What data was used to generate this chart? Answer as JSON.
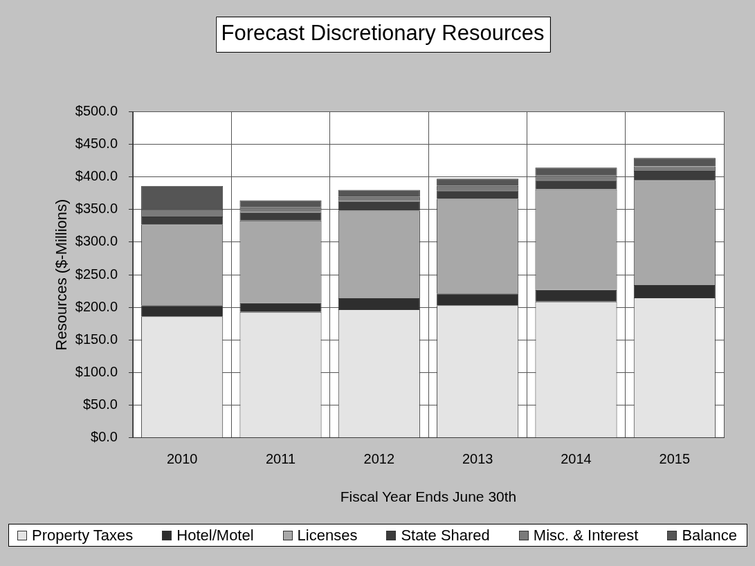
{
  "chart_data": {
    "type": "bar",
    "title": "Forecast Discretionary Resources",
    "xlabel": "Fiscal Year Ends June 30th",
    "ylabel": "Resources ($-Millions)",
    "categories": [
      "2010",
      "2011",
      "2012",
      "2013",
      "2014",
      "2015"
    ],
    "stacked": true,
    "series": [
      {
        "name": "Property Taxes",
        "color": "#e4e4e4",
        "values": [
          186,
          193,
          197,
          203,
          209,
          215
        ]
      },
      {
        "name": "Hotel/Motel",
        "color": "#2e2e2e",
        "values": [
          17,
          14,
          17,
          18,
          18,
          19
        ]
      },
      {
        "name": "Licenses",
        "color": "#a8a8a8",
        "values": [
          124,
          126,
          134,
          145,
          154,
          161
        ]
      },
      {
        "name": "State Shared",
        "color": "#3c3c3c",
        "values": [
          12,
          13,
          15,
          13,
          14,
          14
        ]
      },
      {
        "name": "Misc. & Interest",
        "color": "#7a7a7a",
        "values": [
          11,
          7,
          6,
          7,
          7,
          7
        ]
      },
      {
        "name": "Balance",
        "color": "#555555",
        "values": [
          36,
          11,
          11,
          11,
          12,
          13
        ]
      }
    ],
    "ylim": [
      0,
      500
    ],
    "yticks": [
      {
        "value": 0,
        "label": "$0.0"
      },
      {
        "value": 50,
        "label": "$50.0"
      },
      {
        "value": 100,
        "label": "$100.0"
      },
      {
        "value": 150,
        "label": "$150.0"
      },
      {
        "value": 200,
        "label": "$200.0"
      },
      {
        "value": 250,
        "label": "$250.0"
      },
      {
        "value": 300,
        "label": "$300.0"
      },
      {
        "value": 350,
        "label": "$350.0"
      },
      {
        "value": 400,
        "label": "$400.0"
      },
      {
        "value": 450,
        "label": "$450.0"
      },
      {
        "value": 500,
        "label": "$500.0"
      }
    ],
    "grid": true,
    "legend": "bottom"
  }
}
